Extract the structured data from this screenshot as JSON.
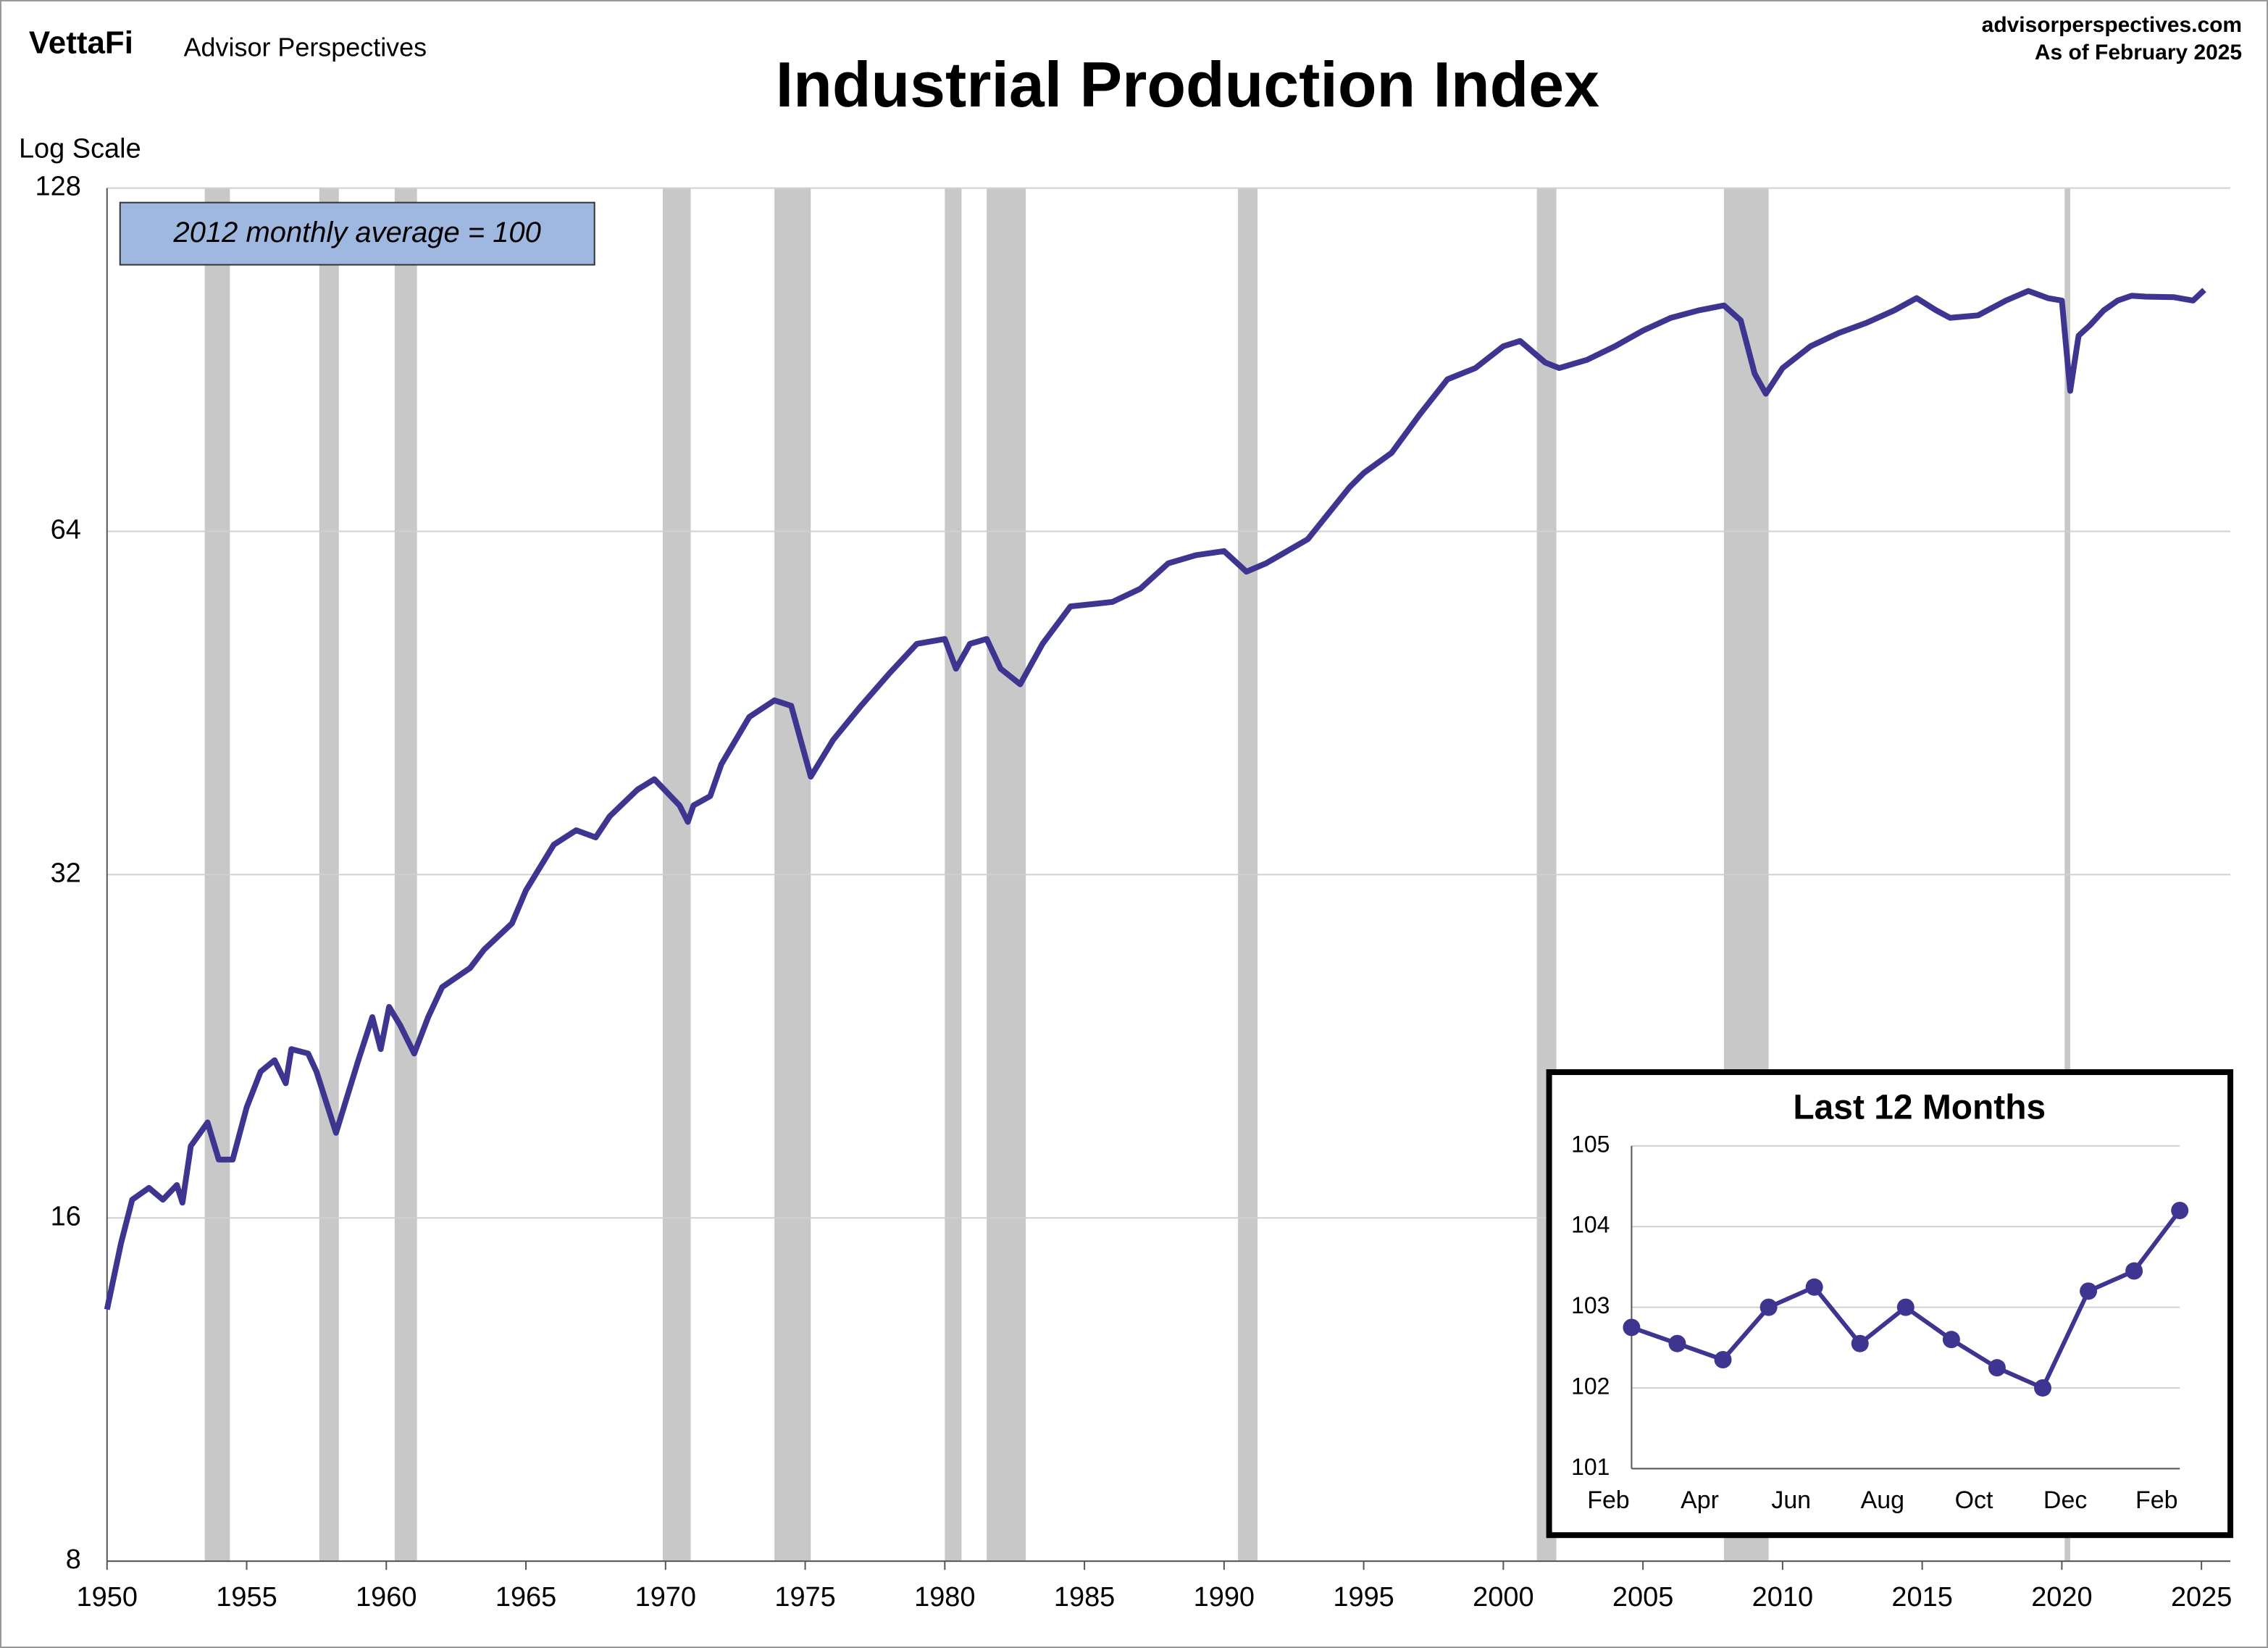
{
  "header": {
    "brand": "VettaFi",
    "publisher": "Advisor Perspectives",
    "site": "advisorperspectives.com",
    "as_of": "As of February 2025"
  },
  "chart_data": [
    {
      "type": "line",
      "title": "Industrial Production Index",
      "y_axis_label": "Log Scale",
      "annotation": "2012 monthly average = 100",
      "color": "#3d3590",
      "log_scale": true,
      "grid": true,
      "recession_color": "#c8c8c8",
      "xlim": [
        1950,
        2025
      ],
      "xticks": [
        1950,
        1955,
        1960,
        1965,
        1970,
        1975,
        1980,
        1985,
        1990,
        1995,
        2000,
        2005,
        2010,
        2015,
        2020,
        2025
      ],
      "ylim": [
        8,
        128
      ],
      "yticks": [
        8,
        16,
        32,
        64,
        128
      ],
      "recessions": [
        {
          "start": 1953.5,
          "end": 1954.4
        },
        {
          "start": 1957.6,
          "end": 1958.3
        },
        {
          "start": 1960.3,
          "end": 1961.1
        },
        {
          "start": 1969.9,
          "end": 1970.9
        },
        {
          "start": 1973.9,
          "end": 1975.2
        },
        {
          "start": 1980.0,
          "end": 1980.6
        },
        {
          "start": 1981.5,
          "end": 1982.9
        },
        {
          "start": 1990.5,
          "end": 1991.2
        },
        {
          "start": 2001.2,
          "end": 2001.9
        },
        {
          "start": 2007.9,
          "end": 2009.5
        },
        {
          "start": 2020.1,
          "end": 2020.3
        }
      ],
      "x": [
        1950.0,
        1950.5,
        1950.9,
        1951.5,
        1952.0,
        1952.5,
        1952.7,
        1953.0,
        1953.6,
        1954.0,
        1954.5,
        1955.0,
        1955.5,
        1956.0,
        1956.4,
        1956.6,
        1957.2,
        1957.5,
        1958.2,
        1959.0,
        1959.5,
        1959.8,
        1960.1,
        1960.5,
        1961.0,
        1961.5,
        1962.0,
        1963.0,
        1963.5,
        1964.5,
        1965.0,
        1966.0,
        1966.8,
        1967.5,
        1968.0,
        1969.0,
        1969.6,
        1970.5,
        1970.8,
        1971.0,
        1971.6,
        1972.0,
        1973.0,
        1973.9,
        1974.5,
        1975.2,
        1976.0,
        1977.0,
        1978.0,
        1979.0,
        1980.0,
        1980.4,
        1980.9,
        1981.5,
        1982.0,
        1982.7,
        1983.5,
        1984.5,
        1986.0,
        1987.0,
        1988.0,
        1989.0,
        1990.0,
        1990.8,
        1991.5,
        1993.0,
        1994.5,
        1995.0,
        1996.0,
        1997.0,
        1998.0,
        1999.0,
        2000.0,
        2000.6,
        2001.5,
        2002.0,
        2003.0,
        2004.0,
        2005.0,
        2006.0,
        2007.0,
        2007.9,
        2008.5,
        2009.0,
        2009.4,
        2010.0,
        2011.0,
        2012.0,
        2013.0,
        2014.0,
        2014.8,
        2015.5,
        2016.0,
        2017.0,
        2018.0,
        2018.8,
        2019.5,
        2020.0,
        2020.3,
        2020.6,
        2021.0,
        2021.5,
        2022.0,
        2022.5,
        2023.0,
        2024.0,
        2024.7,
        2025.1
      ],
      "values": [
        13.3,
        15.2,
        16.6,
        17.0,
        16.6,
        17.1,
        16.5,
        18.5,
        19.4,
        18.0,
        18.0,
        20.0,
        21.5,
        22.0,
        21.0,
        22.5,
        22.3,
        21.5,
        19.0,
        22.0,
        24.0,
        22.5,
        24.5,
        23.6,
        22.3,
        24.0,
        25.5,
        26.5,
        27.5,
        29.0,
        31.0,
        34.0,
        35.0,
        34.5,
        36.0,
        38.0,
        38.8,
        36.8,
        35.6,
        36.8,
        37.5,
        40.0,
        44.0,
        45.5,
        45.0,
        39.0,
        42.0,
        45.0,
        48.0,
        51.0,
        51.5,
        48.5,
        51.0,
        51.5,
        48.5,
        47.0,
        51.0,
        55.0,
        55.5,
        57.0,
        60.0,
        61.0,
        61.5,
        59.0,
        60.0,
        63.0,
        70.0,
        72.0,
        75.0,
        81.0,
        87.0,
        89.0,
        93.0,
        94.0,
        90.0,
        89.0,
        90.5,
        93.0,
        96.0,
        98.5,
        100.0,
        101.0,
        98.0,
        88.0,
        84.5,
        89.0,
        93.0,
        95.5,
        97.5,
        100.0,
        102.5,
        100.0,
        98.5,
        99.0,
        102.0,
        104.0,
        102.5,
        102.0,
        85.0,
        95.0,
        97.0,
        100.0,
        102.0,
        103.0,
        102.8,
        102.7,
        102.0,
        104.2
      ]
    },
    {
      "type": "line",
      "title": "Last 12 Months",
      "color": "#3d3590",
      "grid": true,
      "categories": [
        "Feb",
        null,
        "Apr",
        null,
        "Jun",
        null,
        "Aug",
        null,
        "Oct",
        null,
        "Dec",
        null,
        "Feb"
      ],
      "values": [
        102.75,
        102.55,
        102.35,
        103.0,
        103.25,
        102.55,
        103.0,
        102.6,
        102.25,
        102.0,
        103.2,
        103.45,
        104.2
      ],
      "ylim": [
        101,
        105
      ],
      "yticks": [
        101,
        102,
        103,
        104,
        105
      ]
    }
  ]
}
